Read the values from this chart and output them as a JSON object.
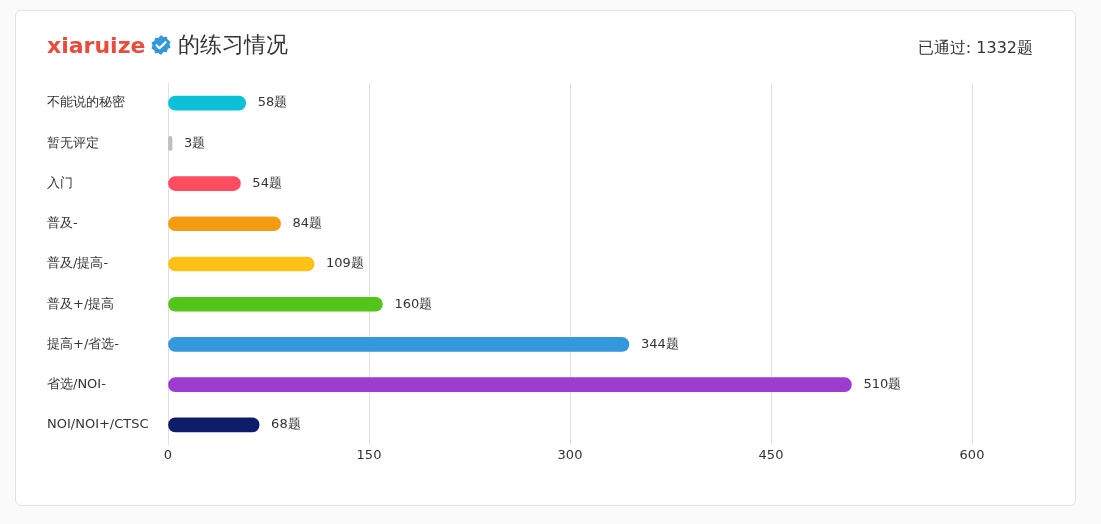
{
  "chart_data": {
    "type": "bar",
    "orientation": "horizontal",
    "title": "xiaruize 的练习情况",
    "annotations": [
      "已通过: 1332题"
    ],
    "categories": [
      "不能说的秘密",
      "暂无评定",
      "入门",
      "普及-",
      "普及/提高-",
      "普及+/提高",
      "提高+/省选-",
      "省选/NOI-",
      "NOI/NOI+/CTSC"
    ],
    "values": [
      58,
      3,
      54,
      84,
      109,
      160,
      344,
      510,
      68
    ],
    "colors": [
      "#0cc0d8",
      "#bfbfbf",
      "#fe4c61",
      "#f39c11",
      "#ffc116",
      "#52c41a",
      "#3498db",
      "#9d3dcf",
      "#0e1d69"
    ],
    "value_labels": [
      "58题",
      "3题",
      "54题",
      "84题",
      "109题",
      "160题",
      "344题",
      "510题",
      "68题"
    ],
    "xlim": [
      0,
      600
    ],
    "xticks": [
      0,
      150,
      300,
      450,
      600
    ],
    "grid": "x"
  }
}
